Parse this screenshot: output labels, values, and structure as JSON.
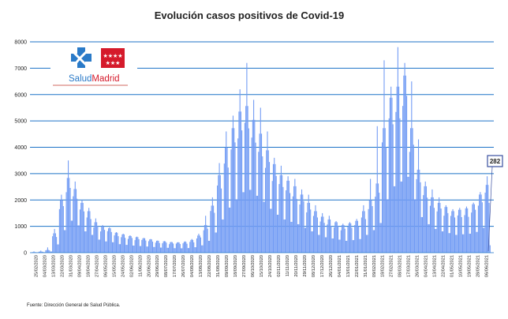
{
  "chart_data": {
    "type": "bar",
    "title": "Evolución casos positivos de Covid-19",
    "xlabel": "",
    "ylabel": "",
    "ylim": [
      0,
      8000
    ],
    "yticks": [
      0,
      1000,
      2000,
      3000,
      4000,
      5000,
      6000,
      7000,
      8000
    ],
    "date_labels": [
      "25/02/2020",
      "04/03/2020",
      "13/03/2020",
      "22/03/2020",
      "31/03/2020",
      "09/04/2020",
      "18/04/2020",
      "27/04/2020",
      "06/05/2020",
      "15/05/2020",
      "24/05/2020",
      "02/06/2020",
      "11/06/2020",
      "20/06/2020",
      "29/06/2020",
      "08/07/2020",
      "17/07/2020",
      "26/07/2020",
      "04/08/2020",
      "13/08/2020",
      "22/08/2020",
      "31/08/2020",
      "09/09/2020",
      "18/09/2020",
      "27/09/2020",
      "06/10/2020",
      "15/10/2020",
      "24/10/2020",
      "02/11/2020",
      "11/11/2020",
      "20/11/2020",
      "29/11/2020",
      "08/12/2020",
      "17/12/2020",
      "26/12/2020",
      "04/01/2021",
      "13/01/2021",
      "22/01/2021",
      "31/01/2021",
      "09/02/2021",
      "18/02/2021",
      "27/02/2021",
      "08/03/2021",
      "17/03/2021",
      "26/03/2021",
      "04/04/2021",
      "13/04/2021",
      "22/04/2021",
      "01/05/2021",
      "10/05/2021",
      "19/05/2021",
      "28/05/2021",
      "06/06/2021"
    ],
    "weekly_levels": [
      20,
      40,
      100,
      700,
      1900,
      2700,
      2300,
      1800,
      1500,
      1100,
      950,
      880,
      720,
      660,
      600,
      560,
      520,
      480,
      430,
      410,
      380,
      370,
      390,
      460,
      620,
      1000,
      1700,
      2800,
      3800,
      4500,
      5100,
      5300,
      4800,
      4300,
      3700,
      3200,
      2800,
      2600,
      2400,
      2100,
      1800,
      1500,
      1300,
      1200,
      1100,
      1000,
      1060,
      1150,
      1500,
      1900,
      2500,
      4500,
      5600,
      6000,
      6400,
      4500,
      3000,
      2400,
      2000,
      1800,
      1650,
      1500,
      1550,
      1600,
      1750,
      2100,
      2450,
      2600,
      2650,
      2500,
      2400,
      2350,
      2300,
      2100
    ],
    "weekly_peaks": [
      50,
      80,
      200,
      900,
      2200,
      3500,
      2700,
      2000,
      1700,
      1300,
      1050,
      960,
      780,
      720,
      660,
      610,
      560,
      520,
      460,
      440,
      410,
      400,
      430,
      520,
      720,
      1400,
      2100,
      3400,
      4600,
      5200,
      6200,
      7200,
      5800,
      5500,
      4600,
      3600,
      3300,
      2900,
      2800,
      2400,
      2200,
      1800,
      1500,
      1400,
      1200,
      1100,
      1160,
      1280,
      1800,
      2800,
      4800,
      7300,
      6300,
      7800,
      7200,
      6500,
      4300,
      2700,
      2400,
      2100,
      1800,
      1650,
      1700,
      1750,
      1900,
      2300,
      2900,
      2950,
      2800,
      2750,
      2700,
      2600,
      2500,
      2400
    ],
    "last_value": 282,
    "last_value_label": "282",
    "bar_color": "#729cf4",
    "grid_color": "#1d73c7"
  },
  "logo": {
    "name_part1": "Salud",
    "name_part2": "Madrid",
    "blue": "#2a7ac8",
    "red": "#d51a2b"
  },
  "footnote": "Fuente: Dirección General de Salud Pública."
}
